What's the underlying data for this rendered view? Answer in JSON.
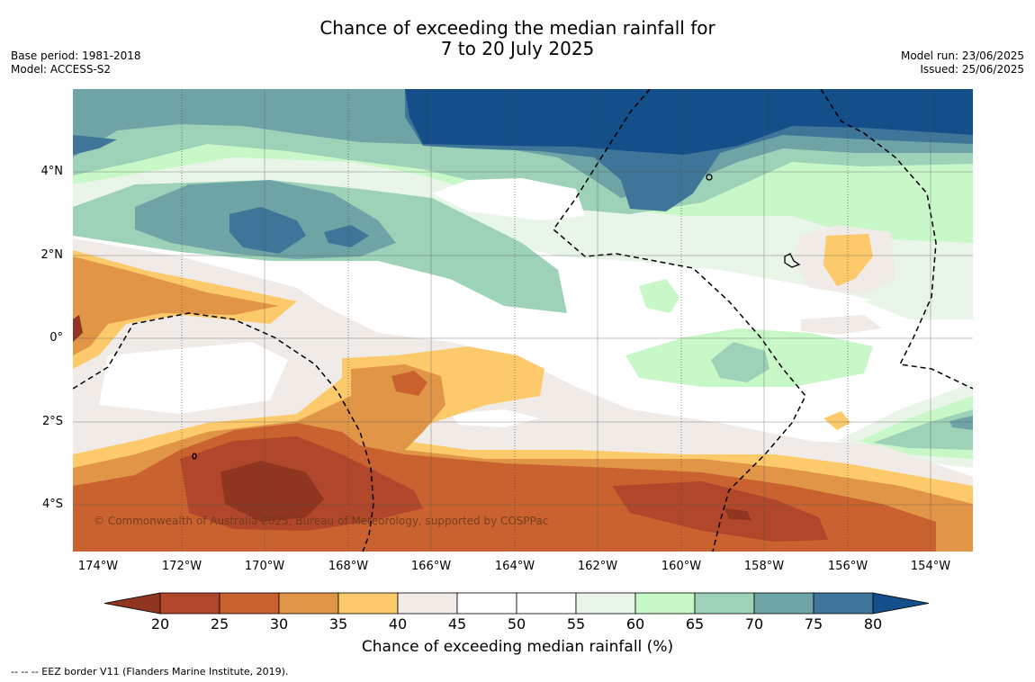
{
  "title": {
    "line1": "Chance of exceeding the median rainfall for",
    "line2": "7 to 20 July 2025"
  },
  "meta_left": {
    "base_period": "Base period: 1981-2018",
    "model": "Model: ACCESS-S2"
  },
  "meta_right": {
    "model_run": "Model run: 23/06/2025",
    "issued": "Issued: 25/06/2025"
  },
  "axes": {
    "lat_labels": [
      "4°N",
      "2°N",
      "0°",
      "2°S",
      "4°S"
    ],
    "lon_labels": [
      "174°W",
      "172°W",
      "170°W",
      "168°W",
      "166°W",
      "164°W",
      "162°W",
      "160°W",
      "158°W",
      "156°W",
      "154°W"
    ]
  },
  "copyright": "© Commonwealth of Australia 2025, Bureau of Meteorology, supported by COSPPac",
  "colorbar": {
    "ticks": [
      "20",
      "25",
      "30",
      "35",
      "40",
      "45",
      "50",
      "55",
      "60",
      "65",
      "70",
      "75",
      "80"
    ],
    "label": "Chance of exceeding median rainfall (%)",
    "colors": [
      "#8f3520",
      "#b0472a",
      "#c9622f",
      "#e09547",
      "#fdca6b",
      "#f0ebe6",
      "#ffffff",
      "#ffffff",
      "#e8f5e8",
      "#c8f7c8",
      "#9dd1b8",
      "#6ea4a6",
      "#3f7599",
      "#154f8a"
    ]
  },
  "footer": "--  --  -- EEZ border V11 (Flanders Marine Institute, 2019)."
}
